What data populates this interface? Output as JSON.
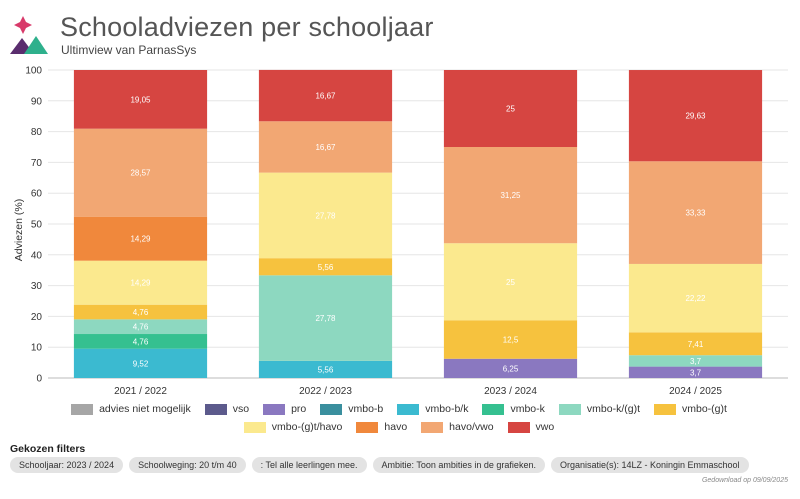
{
  "header": {
    "title": "Schooladviezen per schooljaar",
    "subtitle": "Ultimview van ParnasSys"
  },
  "chart_data": {
    "type": "bar",
    "stacked": true,
    "ylabel": "Adviezen (%)",
    "xlabel": "",
    "ylim": [
      0,
      100
    ],
    "yticks": [
      0,
      10,
      20,
      30,
      40,
      50,
      60,
      70,
      80,
      90,
      100
    ],
    "grid": true,
    "categories": [
      "2021 / 2022",
      "2022 / 2023",
      "2023 / 2024",
      "2024 / 2025"
    ],
    "series": [
      {
        "name": "advies niet mogelijk",
        "color": "#a6a6a6",
        "values": [
          0,
          0,
          0,
          0
        ],
        "labels": [
          "",
          "",
          "",
          ""
        ]
      },
      {
        "name": "vso",
        "color": "#5c5a8c",
        "values": [
          0,
          0,
          0,
          0
        ],
        "labels": [
          "",
          "",
          "",
          ""
        ]
      },
      {
        "name": "pro",
        "color": "#8a78c0",
        "values": [
          0,
          0,
          6.25,
          3.7
        ],
        "labels": [
          "",
          "",
          "6,25",
          "3,7"
        ]
      },
      {
        "name": "vmbo-b",
        "color": "#3a8f9e",
        "values": [
          0,
          0,
          0,
          0
        ],
        "labels": [
          "",
          "",
          "",
          ""
        ]
      },
      {
        "name": "vmbo-b/k",
        "color": "#3bbad0",
        "values": [
          9.52,
          5.56,
          0,
          0
        ],
        "labels": [
          "9,52",
          "5,56",
          "",
          ""
        ]
      },
      {
        "name": "vmbo-k",
        "color": "#35c090",
        "values": [
          4.76,
          0,
          0,
          0
        ],
        "labels": [
          "4,76",
          "",
          "",
          ""
        ]
      },
      {
        "name": "vmbo-k/(g)t",
        "color": "#8dd8c0",
        "values": [
          4.76,
          27.78,
          0,
          3.7
        ],
        "labels": [
          "4,76",
          "27,78",
          "",
          "3,7"
        ]
      },
      {
        "name": "vmbo-(g)t",
        "color": "#f6c23e",
        "values": [
          4.76,
          5.56,
          12.5,
          7.41
        ],
        "labels": [
          "4,76",
          "5,56",
          "12,5",
          "7,41"
        ]
      },
      {
        "name": "vmbo-(g)t/havo",
        "color": "#fbe98e",
        "values": [
          14.29,
          27.78,
          25,
          22.22
        ],
        "labels": [
          "14,29",
          "27,78",
          "25",
          "22,22"
        ]
      },
      {
        "name": "havo",
        "color": "#f0883c",
        "values": [
          14.29,
          0,
          0,
          0
        ],
        "labels": [
          "14,29",
          "",
          "",
          ""
        ]
      },
      {
        "name": "havo/vwo",
        "color": "#f2a773",
        "values": [
          28.57,
          16.67,
          31.25,
          33.33
        ],
        "labels": [
          "28,57",
          "16,67",
          "31,25",
          "33,33"
        ]
      },
      {
        "name": "vwo",
        "color": "#d64541",
        "values": [
          19.05,
          16.67,
          25,
          29.63
        ],
        "labels": [
          "19,05",
          "16,67",
          "25",
          "29,63"
        ]
      }
    ]
  },
  "filters": {
    "title": "Gekozen filters",
    "chips": [
      "Schooljaar: 2023 / 2024",
      "Schoolweging: 20 t/m 40",
      ": Tel alle leerlingen mee.",
      "Ambitie: Toon ambities in de grafieken.",
      "Organisatie(s): 14LZ - Koningin Emmaschool"
    ]
  },
  "footnote": "Gedownload op 09/09/2025",
  "colors": {
    "title": "#555555",
    "grid": "#e6e6e6",
    "chip_bg": "#e3e3e3"
  }
}
